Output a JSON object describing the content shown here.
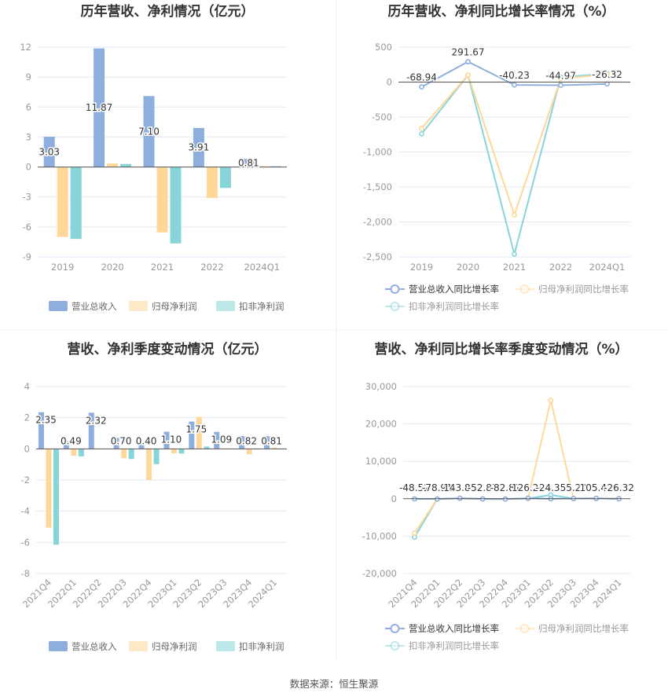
{
  "colors": {
    "revenue": "#8eaedd",
    "net_profit": "#ffd899",
    "deducted": "#87d5d9",
    "grid": "#e3e8f4",
    "axis": "#555555"
  },
  "source": "数据来源：恒生聚源",
  "chart_data": [
    {
      "type": "bar",
      "title": "历年营收、净利情况（亿元）",
      "categories": [
        "2019",
        "2020",
        "2021",
        "2022",
        "2024Q1"
      ],
      "ylim": [
        -9,
        12
      ],
      "yticks": [
        12,
        9,
        6,
        3,
        0,
        -3,
        -6,
        -9
      ],
      "ytick_labels": [
        "12",
        "9",
        "6",
        "3",
        "0",
        "-3",
        "-6",
        "-9"
      ],
      "legend_position": "bottom",
      "series": [
        {
          "name": "营业总收入",
          "values": [
            3.03,
            11.87,
            7.1,
            3.91,
            0.81
          ],
          "labels": [
            "3.03",
            "11.87",
            "7.10",
            "3.91",
            "0.81"
          ]
        },
        {
          "name": "归母净利润",
          "values": [
            -7.0,
            0.35,
            -6.55,
            -3.1,
            0.08
          ]
        },
        {
          "name": "扣非净利润",
          "values": [
            -7.2,
            0.3,
            -7.65,
            -2.1,
            0.08
          ]
        }
      ]
    },
    {
      "type": "line",
      "title": "历年营收、净利同比增长率情况（%）",
      "categories": [
        "2019",
        "2020",
        "2021",
        "2022",
        "2024Q1"
      ],
      "ylim": [
        -2500,
        500
      ],
      "yticks": [
        500,
        0,
        -500,
        -1000,
        -1500,
        -2000,
        -2500
      ],
      "ytick_labels": [
        "500",
        "0",
        "-500",
        "-1,000",
        "-1,500",
        "-2,000",
        "-2,500"
      ],
      "legend_position": "bottom",
      "series": [
        {
          "name": "营业总收入同比增长率",
          "values": [
            -68.94,
            291.67,
            -40.23,
            -44.97,
            -26.32
          ],
          "labels": [
            "-68.94",
            "291.67",
            "-40.23",
            "-44.97",
            "-26.32"
          ]
        },
        {
          "name": "归母净利润同比增长率",
          "values": [
            -660,
            100,
            -1900,
            50,
            110
          ]
        },
        {
          "name": "扣非净利润同比增长率",
          "values": [
            -740,
            100,
            -2460,
            70,
            120
          ]
        }
      ]
    },
    {
      "type": "bar",
      "title": "营收、净利季度变动情况（亿元）",
      "categories": [
        "2021Q4",
        "2022Q1",
        "2022Q2",
        "2022Q3",
        "2022Q4",
        "2023Q1",
        "2023Q2",
        "2023Q3",
        "2023Q4",
        "2024Q1"
      ],
      "ylim": [
        -8,
        4
      ],
      "yticks": [
        4,
        2,
        0,
        -2,
        -4,
        -6,
        -8
      ],
      "ytick_labels": [
        "4",
        "2",
        "0",
        "-2",
        "-4",
        "-6",
        "-8"
      ],
      "legend_position": "bottom",
      "series": [
        {
          "name": "营业总收入",
          "values": [
            2.35,
            0.49,
            2.32,
            0.7,
            0.4,
            1.1,
            1.75,
            1.09,
            0.82,
            0.81
          ],
          "labels": [
            "2.35",
            "0.49",
            "2.32",
            "0.70",
            "0.40",
            "1.10",
            "1.75",
            "1.09",
            "0.82",
            "0.81"
          ]
        },
        {
          "name": "归母净利润",
          "values": [
            -5.05,
            -0.45,
            0.02,
            -0.6,
            -2.0,
            -0.28,
            2.05,
            0.01,
            -0.35,
            0.08
          ]
        },
        {
          "name": "扣非净利润",
          "values": [
            -6.15,
            -0.48,
            0.02,
            -0.65,
            -0.98,
            -0.3,
            0.15,
            0.01,
            0.0,
            0.02
          ]
        }
      ]
    },
    {
      "type": "line",
      "title": "营收、净利同比增长率季度变动情况（%）",
      "categories": [
        "2021Q4",
        "2022Q1",
        "2022Q2",
        "2022Q3",
        "2022Q4",
        "2023Q1",
        "2023Q2",
        "2023Q3",
        "2023Q4",
        "2024Q1"
      ],
      "ylim": [
        -20000,
        30000
      ],
      "yticks": [
        30000,
        20000,
        10000,
        0,
        -10000,
        -20000
      ],
      "ytick_labels": [
        "30,000",
        "20,000",
        "10,000",
        "0",
        "-10,000",
        "-20,000"
      ],
      "legend_position": "bottom",
      "series": [
        {
          "name": "营业总收入同比增长率",
          "values": [
            -48.52,
            -78.91,
            143.8,
            -52.87,
            -82.81,
            126.2,
            -24.36,
            55.2,
            105.42,
            -26.32
          ],
          "labels": [
            "-48.52",
            "-78.91",
            "143.80",
            "-52.87",
            "-82.81",
            "126.20",
            "-24.36",
            "55.20",
            "105.42",
            "-26.32"
          ]
        },
        {
          "name": "归母净利润同比增长率",
          "values": [
            -9200,
            -80,
            100,
            -60,
            -100,
            80,
            26300,
            60,
            100,
            80
          ]
        },
        {
          "name": "扣非净利润同比增长率",
          "values": [
            -10300,
            -90,
            90,
            -70,
            -60,
            70,
            1000,
            50,
            80,
            40
          ]
        }
      ]
    }
  ]
}
